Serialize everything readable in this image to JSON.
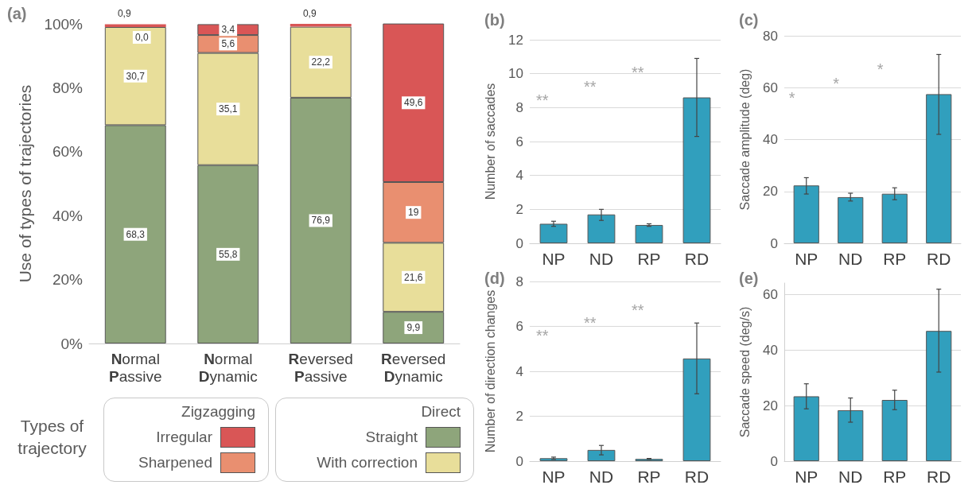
{
  "chart_data": [
    {
      "type": "bar",
      "title": "(a)",
      "ylabel": "Use of types of trajectories",
      "legend_title": "Types of trajectory",
      "annotations": [
        "Zigzagging",
        "Direct"
      ],
      "categories": [
        "Normal Passive",
        "Normal Dynamic",
        "Reversed Passive",
        "Reversed Dynamic"
      ],
      "stacked": true,
      "legend": "bottom",
      "grid": false,
      "ylim": [
        0,
        100
      ],
      "yticks": [
        {
          "value": 0,
          "label": "0%"
        },
        {
          "value": 20,
          "label": "20%"
        },
        {
          "value": 40,
          "label": "40%"
        },
        {
          "value": 60,
          "label": "60%"
        },
        {
          "value": 80,
          "label": "80%"
        },
        {
          "value": 100,
          "label": "100%"
        }
      ],
      "series": [
        {
          "name": "Straight",
          "color": "#8ea57b",
          "values": [
            68.3,
            55.8,
            76.9,
            9.9
          ],
          "value_labels": [
            "68,3",
            "55,8",
            "76,9",
            "9,9"
          ]
        },
        {
          "name": "With correction",
          "color": "#e8de9a",
          "values": [
            30.7,
            35.1,
            22.2,
            21.6
          ],
          "value_labels": [
            "30,7",
            "35,1",
            "22,2",
            "21,6"
          ]
        },
        {
          "name": "Sharpened",
          "color": "#e98f70",
          "values": [
            0.0,
            5.6,
            0,
            19
          ],
          "value_labels": [
            "0,0",
            "5,6",
            null,
            "19"
          ]
        },
        {
          "name": "Irregular",
          "color": "#d95656",
          "values": [
            0.9,
            3.4,
            0.9,
            49.6
          ],
          "value_labels": [
            "0,9",
            "3,4",
            "0,9",
            "49,6"
          ]
        }
      ]
    },
    {
      "type": "bar",
      "title": "(b)",
      "ylabel": "Number of saccades",
      "categories": [
        "NP",
        "ND",
        "RP",
        "RD"
      ],
      "grid": "y",
      "color": "#319fbd",
      "ylim": [
        0,
        12
      ],
      "yticks": [
        0,
        2,
        4,
        6,
        8,
        10,
        12
      ],
      "values": [
        1.15,
        1.7,
        1.08,
        8.6
      ],
      "errors": [
        [
          1.0,
          1.3
        ],
        [
          1.35,
          2.0
        ],
        [
          1.0,
          1.15
        ],
        [
          6.3,
          10.9
        ]
      ],
      "annotations": [
        "**",
        "**",
        "**"
      ]
    },
    {
      "type": "bar",
      "title": "(c)",
      "ylabel": "Saccade amplitude (deg)",
      "categories": [
        "NP",
        "ND",
        "RP",
        "RD"
      ],
      "grid": "y",
      "color": "#319fbd",
      "ylim": [
        0,
        80
      ],
      "yticks": [
        0,
        20,
        40,
        60,
        80
      ],
      "values": [
        22.3,
        17.8,
        19.1,
        57.5
      ],
      "errors": [
        [
          19,
          25.3
        ],
        [
          16.3,
          19.3
        ],
        [
          16.8,
          21.4
        ],
        [
          42,
          72.8
        ]
      ],
      "annotations": [
        "*",
        "*",
        "*"
      ]
    },
    {
      "type": "bar",
      "title": "(d)",
      "ylabel": "Number of direction changes",
      "categories": [
        "NP",
        "ND",
        "RP",
        "RD"
      ],
      "grid": "y",
      "color": "#319fbd",
      "ylim": [
        0,
        8
      ],
      "yticks": [
        0,
        2,
        4,
        6,
        8
      ],
      "values": [
        0.13,
        0.5,
        0.1,
        4.57
      ],
      "errors": [
        [
          0.08,
          0.18
        ],
        [
          0.28,
          0.7
        ],
        [
          0.08,
          0.12
        ],
        [
          3.0,
          6.15
        ]
      ],
      "annotations": [
        "**",
        "**",
        "**"
      ]
    },
    {
      "type": "bar",
      "title": "(e)",
      "ylabel": "Saccade speed (deg/s)",
      "categories": [
        "NP",
        "ND",
        "RP",
        "RD"
      ],
      "grid": "y",
      "color": "#319fbd",
      "ylim": [
        0,
        64
      ],
      "yticks": [
        0,
        20,
        40,
        60
      ],
      "values": [
        23.3,
        18.3,
        22,
        46.8
      ],
      "errors": [
        [
          18.8,
          27.8
        ],
        [
          14,
          22.7
        ],
        [
          18.5,
          25.5
        ],
        [
          32,
          61.8
        ]
      ]
    }
  ]
}
